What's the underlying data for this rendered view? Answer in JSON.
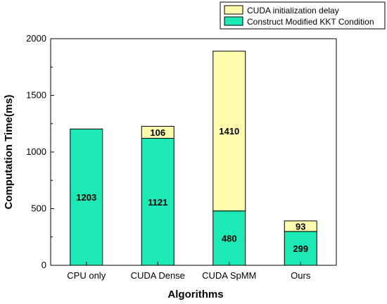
{
  "chart_data": {
    "type": "bar",
    "stacked": true,
    "categories": [
      "CPU only",
      "CUDA Dense",
      "CUDA SpMM",
      "Ours"
    ],
    "series": [
      {
        "name": "Construct Modified KKT Condition",
        "values": [
          1203,
          1121,
          480,
          299
        ],
        "color": "#1de9b6"
      },
      {
        "name": "CUDA initialization delay",
        "values": [
          0,
          106,
          1410,
          93
        ],
        "color": "#fdfdad"
      }
    ],
    "xlabel": "Algorithms",
    "ylabel": "Computation Time(ms)",
    "ylim": [
      0,
      2000
    ],
    "yticks": [
      0,
      500,
      1000,
      1500,
      2000
    ],
    "grid": false,
    "legend_position": "top-right"
  }
}
